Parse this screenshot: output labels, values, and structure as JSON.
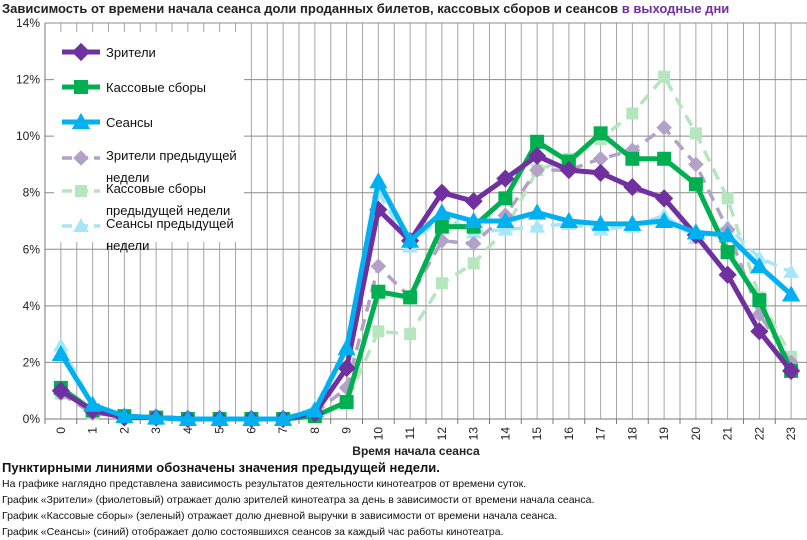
{
  "title": {
    "main": "Зависимость от времени начала сеанса доли проданных билетов, кассовых сборов и сеансов",
    "accent": "в выходные дни"
  },
  "notes": {
    "bold": "Пунктирными линиями обозначены значения предыдущей недели.",
    "lines": [
      "На графике наглядно представлена зависимость результатов деятельности кинотеатров от времени суток.",
      "График «Зрители» (фиолетовый) отражает долю зрителей кинотеатра за день в зависимости от времени начала сеанса.",
      "График «Кассовые сборы» (зеленый) отражает долю дневной выручки в зависимости от времени начала сеанса.",
      "График «Сеансы» (синий) отображает долю состоявшихся сеансов за каждый час работы кинотеатра."
    ]
  },
  "chart_data": {
    "type": "line",
    "xlabel": "Время начала сеанса",
    "ylabel": "",
    "ylim": [
      0,
      14
    ],
    "yticks": [
      "0%",
      "2%",
      "4%",
      "6%",
      "8%",
      "10%",
      "12%",
      "14%"
    ],
    "grid": true,
    "legend_placement": "top-left",
    "categories": [
      "0",
      "1",
      "2",
      "3",
      "4",
      "5",
      "6",
      "7",
      "8",
      "9",
      "10",
      "11",
      "12",
      "13",
      "14",
      "15",
      "16",
      "17",
      "18",
      "19",
      "20",
      "21",
      "22",
      "23"
    ],
    "series": [
      {
        "name": "Зрители",
        "color": "#7030a0",
        "marker": "diamond",
        "dashed": false,
        "values": [
          1.0,
          0.3,
          0.05,
          0.05,
          0.0,
          0.0,
          0.0,
          0.0,
          0.2,
          1.8,
          7.4,
          6.3,
          8.0,
          7.7,
          8.5,
          9.3,
          8.8,
          8.7,
          8.2,
          7.8,
          6.5,
          5.1,
          3.1,
          1.7
        ]
      },
      {
        "name": "Кассовые сборы",
        "color": "#00b050",
        "marker": "square",
        "dashed": false,
        "values": [
          1.1,
          0.3,
          0.1,
          0.05,
          0.0,
          0.0,
          0.0,
          0.0,
          0.1,
          0.6,
          4.5,
          4.3,
          6.8,
          6.8,
          7.8,
          9.8,
          9.1,
          10.1,
          9.2,
          9.2,
          8.3,
          5.9,
          4.2,
          1.7
        ]
      },
      {
        "name": "Сеансы",
        "color": "#00b0f0",
        "marker": "triangle",
        "dashed": false,
        "values": [
          2.3,
          0.5,
          0.1,
          0.05,
          0.0,
          0.0,
          0.0,
          0.0,
          0.3,
          2.5,
          8.4,
          6.3,
          7.3,
          7.0,
          7.0,
          7.3,
          7.0,
          6.9,
          6.9,
          7.0,
          6.6,
          6.5,
          5.4,
          4.4
        ]
      },
      {
        "name": "Зрители предыдущей недели",
        "color": "#b3a2c7",
        "marker": "diamond",
        "dashed": true,
        "values": [
          0.9,
          0.2,
          0.1,
          0.05,
          0.0,
          0.0,
          0.0,
          0.0,
          0.2,
          1.1,
          5.4,
          4.3,
          6.3,
          6.2,
          7.2,
          8.8,
          8.8,
          9.2,
          9.5,
          10.3,
          9.0,
          6.7,
          3.7,
          2.0
        ]
      },
      {
        "name": "Кассовые сборы предыдущей недели",
        "color": "#b6e6bd",
        "marker": "square",
        "dashed": true,
        "values": [
          0.9,
          0.2,
          0.1,
          0.05,
          0.0,
          0.0,
          0.0,
          0.0,
          0.1,
          0.6,
          3.1,
          3.0,
          4.8,
          5.5,
          6.7,
          8.8,
          9.2,
          9.9,
          10.8,
          12.1,
          10.1,
          7.8,
          4.3,
          2.2
        ]
      },
      {
        "name": "Сеансы предыдущей недели",
        "color": "#a6e6f8",
        "marker": "triangle",
        "dashed": true,
        "values": [
          2.6,
          0.5,
          0.1,
          0.05,
          0.0,
          0.0,
          0.0,
          0.0,
          0.4,
          2.6,
          8.0,
          6.1,
          7.2,
          6.6,
          6.7,
          6.8,
          6.9,
          6.7,
          6.8,
          7.2,
          6.4,
          6.8,
          5.7,
          5.2
        ]
      }
    ]
  }
}
